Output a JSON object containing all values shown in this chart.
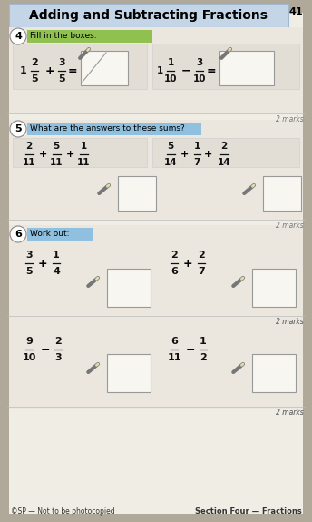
{
  "page_number": "41",
  "title": "Adding and Subtracting Fractions",
  "title_bg": "#c5d5e8",
  "page_bg": "#b0a898",
  "content_bg": "#f0ede5",
  "section_bg": "#e8e4dc",
  "q4_label": "4",
  "q4_instruction": "Fill in the boxes.",
  "q4_instruction_bg": "#8fc050",
  "q5_label": "5",
  "q5_instruction": "What are the answers to these sums?",
  "q5_instruction_bg": "#8fc0e0",
  "q6_label": "6",
  "q6_instruction": "Work out:",
  "q6_instruction_bg": "#8fc0e0",
  "marks_text": "2 marks",
  "footer_left": "©SP — Not to be photocopied",
  "footer_right": "Section Four — Fractions",
  "footer_color": "#333333",
  "watermark_color": "#cccccc",
  "pencil_color": "#777777",
  "box_color": "#aaaaaa",
  "frac_color": "#222222",
  "label_circle_color": "#ffffff",
  "marks_color": "#777777"
}
